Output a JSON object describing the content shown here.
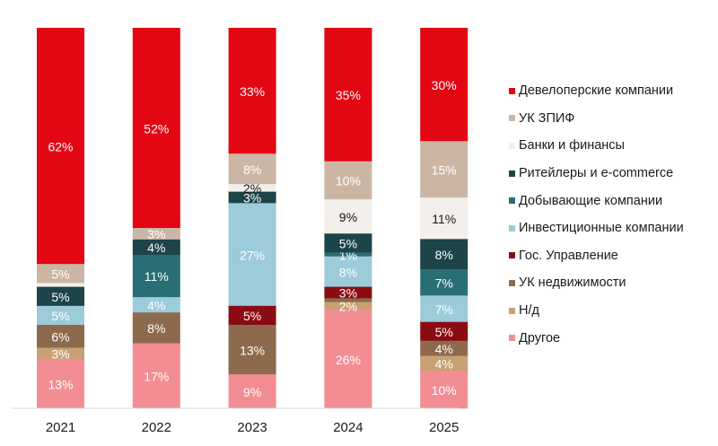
{
  "chart_data": {
    "type": "bar",
    "stacked": true,
    "normalized": true,
    "title": "",
    "xlabel": "",
    "ylabel": "",
    "ylim": [
      0,
      100
    ],
    "grid": false,
    "legend_position": "right",
    "categories": [
      "2021",
      "2022",
      "2023",
      "2024",
      "2025"
    ],
    "series": [
      {
        "name": "Девелоперские компании",
        "color": "#e30613",
        "label_color": "#ffffff",
        "values": [
          62,
          52,
          33,
          35,
          30
        ],
        "labels": [
          "62%",
          "52%",
          "33%",
          "35%",
          "30%"
        ]
      },
      {
        "name": "УК ЗПИФ",
        "color": "#cbb6a6",
        "label_color": "#ffffff",
        "values": [
          5,
          3,
          8,
          10,
          15
        ],
        "labels": [
          "5%",
          "3%",
          "8%",
          "10%",
          "15%"
        ]
      },
      {
        "name": "Банки и финансы",
        "color": "#f3efea",
        "label_color": "#1a1a1a",
        "values": [
          1,
          0,
          2,
          9,
          11
        ],
        "labels": [
          "",
          "",
          "2%",
          "9%",
          "11%"
        ]
      },
      {
        "name": "Ритейлеры и e-commerce",
        "color": "#1c4449",
        "label_color": "#ffffff",
        "values": [
          5,
          4,
          3,
          5,
          8
        ],
        "labels": [
          "5%",
          "4%",
          "3%",
          "5%",
          "8%"
        ]
      },
      {
        "name": "Добывающие компании",
        "color": "#2a6e75",
        "label_color": "#ffffff",
        "values": [
          0,
          11,
          0,
          1,
          7
        ],
        "labels": [
          "",
          "11%",
          "",
          "1%",
          "7%"
        ]
      },
      {
        "name": "Инвестиционные компании",
        "color": "#9ccbda",
        "label_color": "#ffffff",
        "values": [
          5,
          4,
          27,
          8,
          7
        ],
        "labels": [
          "5%",
          "4%",
          "27%",
          "8%",
          "7%"
        ]
      },
      {
        "name": "Гос. Управление",
        "color": "#8b0b12",
        "label_color": "#ffffff",
        "values": [
          0,
          0,
          5,
          3,
          5
        ],
        "labels": [
          "",
          "",
          "5%",
          "3%",
          "5%"
        ]
      },
      {
        "name": "УК недвижимости",
        "color": "#8e6a4c",
        "label_color": "#ffffff",
        "values": [
          6,
          8,
          13,
          1,
          4
        ],
        "labels": [
          "6%",
          "8%",
          "13%",
          "",
          "4%"
        ]
      },
      {
        "name": "Н/д",
        "color": "#c9a074",
        "label_color": "#ffffff",
        "values": [
          3,
          0,
          0,
          2,
          4
        ],
        "labels": [
          "3%",
          "",
          "",
          "2%",
          "4%"
        ]
      },
      {
        "name": "Другое",
        "color": "#f28e93",
        "label_color": "#ffffff",
        "values": [
          13,
          17,
          9,
          26,
          10
        ],
        "labels": [
          "13%",
          "17%",
          "9%",
          "26%",
          "10%"
        ]
      }
    ]
  }
}
